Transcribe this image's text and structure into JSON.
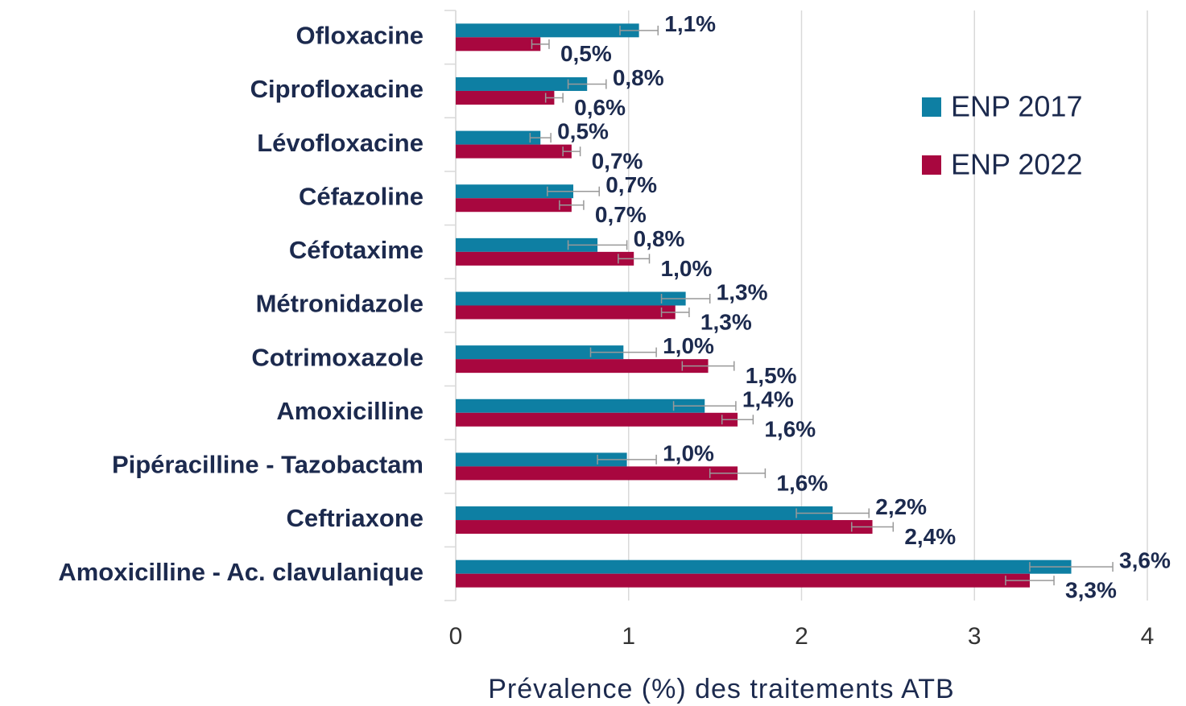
{
  "chart_data": {
    "type": "bar",
    "orientation": "horizontal",
    "x_label": "Prévalence (%) des traitements ATB",
    "categories": [
      "Ofloxacine",
      "Ciprofloxacine",
      "Lévofloxacine",
      "Céfazoline",
      "Céfotaxime",
      "Métronidazole",
      "Cotrimoxazole",
      "Amoxicilline",
      "Pipéracilline - Tazobactam",
      "Ceftriaxone",
      "Amoxicilline - Ac. clavulanique"
    ],
    "series": [
      {
        "name": "ENP 2017",
        "color": "#0e7fa3",
        "values": [
          1.06,
          0.76,
          0.49,
          0.68,
          0.82,
          1.33,
          0.97,
          1.44,
          0.99,
          2.18,
          3.56
        ],
        "errors": [
          0.11,
          0.11,
          0.06,
          0.15,
          0.17,
          0.14,
          0.19,
          0.18,
          0.17,
          0.21,
          0.24
        ],
        "value_labels": [
          "1,1%",
          "0,8%",
          "0,5%",
          "0,7%",
          "0,8%",
          "1,3%",
          "1,0%",
          "1,4%",
          "1,0%",
          "2,2%",
          "3,6%"
        ]
      },
      {
        "name": "ENP 2022",
        "color": "#a8073f",
        "values": [
          0.49,
          0.57,
          0.67,
          0.67,
          1.03,
          1.27,
          1.46,
          1.63,
          1.63,
          2.41,
          3.32
        ],
        "errors": [
          0.05,
          0.05,
          0.05,
          0.07,
          0.09,
          0.08,
          0.15,
          0.09,
          0.16,
          0.12,
          0.14
        ],
        "value_labels": [
          "0,5%",
          "0,6%",
          "0,7%",
          "0,7%",
          "1,0%",
          "1,3%",
          "1,5%",
          "1,6%",
          "1,6%",
          "2,4%",
          "3,3%"
        ]
      }
    ],
    "xlim": [
      0,
      4
    ],
    "xticks": [
      0,
      1,
      2,
      3,
      4
    ],
    "grid": true,
    "legend": "upper right"
  }
}
